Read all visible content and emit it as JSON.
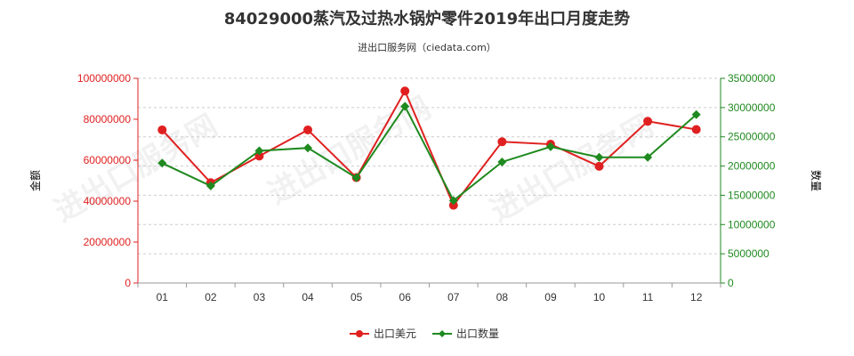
{
  "chart_data": {
    "type": "line",
    "title": "84029000蒸汽及过热水锅炉零件2019年出口月度走势",
    "subtitle": "进出口服务网（ciedata.com）",
    "categories": [
      "01",
      "02",
      "03",
      "04",
      "05",
      "06",
      "07",
      "08",
      "09",
      "10",
      "11",
      "12"
    ],
    "y_left": {
      "label": "金额",
      "ylim": [
        0,
        100000000
      ],
      "ticks": [
        "0",
        "20000000",
        "40000000",
        "60000000",
        "80000000",
        "100000000"
      ],
      "color": "#e02020"
    },
    "y_right": {
      "label": "数量",
      "ylim": [
        0,
        35000000
      ],
      "ticks": [
        "0",
        "5000000",
        "10000000",
        "15000000",
        "20000000",
        "25000000",
        "30000000",
        "35000000"
      ],
      "color": "#2a8a2a"
    },
    "series": [
      {
        "name": "出口美元",
        "axis": "left",
        "color": "#e02020",
        "values": [
          74800000,
          49000000,
          62000000,
          74800000,
          51500000,
          93800000,
          38000000,
          69000000,
          67800000,
          57000000,
          79000000,
          75000000
        ]
      },
      {
        "name": "出口数量",
        "axis": "right",
        "color": "#1f8a1f",
        "values": [
          20500000,
          16600000,
          22600000,
          23100000,
          18000000,
          30200000,
          14100000,
          20700000,
          23300000,
          21500000,
          21500000,
          28800000
        ]
      }
    ],
    "grid": true,
    "legend": "bottom-center",
    "watermark": "进出口服务网"
  }
}
